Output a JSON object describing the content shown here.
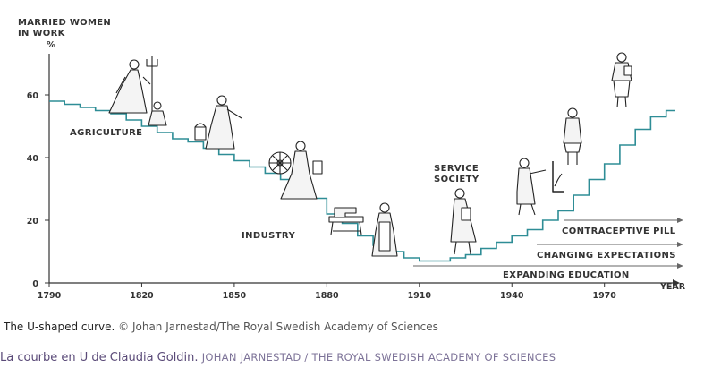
{
  "chart_data": {
    "type": "line",
    "step": true,
    "ylabel_line1": "MARRIED WOMEN",
    "ylabel_line2": "IN WORK",
    "yunit": "%",
    "xlabel": "YEAR",
    "x_ticks": [
      1790,
      1820,
      1850,
      1880,
      1910,
      1940,
      1970
    ],
    "y_ticks": [
      0,
      20,
      40,
      60
    ],
    "xlim": [
      1790,
      1993
    ],
    "ylim": [
      0,
      70
    ],
    "series": [
      {
        "x": [
          1790,
          1795,
          1800,
          1805,
          1810,
          1815,
          1820,
          1825,
          1830,
          1835,
          1840,
          1845,
          1850,
          1855,
          1860,
          1865,
          1870,
          1875,
          1880,
          1885,
          1890,
          1895,
          1900,
          1905,
          1910,
          1915,
          1920,
          1925,
          1930,
          1935,
          1940,
          1945,
          1950,
          1955,
          1960,
          1965,
          1970,
          1975,
          1980,
          1985,
          1990
        ],
        "y": [
          58,
          57,
          56,
          55,
          54,
          52,
          50,
          48,
          46,
          45,
          43,
          41,
          39,
          37,
          35,
          33,
          30,
          27,
          22,
          19,
          15,
          12,
          10,
          8,
          7,
          7,
          8,
          9,
          11,
          13,
          15,
          17,
          20,
          23,
          28,
          33,
          38,
          44,
          49,
          53,
          55
        ]
      }
    ],
    "era_labels": {
      "agriculture": "AGRICULTURE",
      "industry": "INDUSTRY",
      "service_line1": "SERVICE",
      "service_line2": "SOCIETY"
    },
    "annotations": {
      "pill": "CONTRACEPTIVE PILL",
      "expectations": "CHANGING EXPECTATIONS",
      "education": "EXPANDING EDUCATION"
    },
    "line_color": "#2e8d96"
  },
  "caption": {
    "figure_title": "The U-shaped curve.",
    "figure_credit": "© Johan Jarnestad/The Royal Swedish Academy of Sciences",
    "article_title": "La courbe en U de Claudia Goldin.",
    "article_credit": "JOHAN JARNESTAD / THE ROYAL SWEDISH ACADEMY OF SCIENCES"
  },
  "illustrations": [
    "woman-with-pitchfork-icon",
    "woman-carrying-bucket-icon",
    "woman-at-spinning-wheel-icon",
    "sewing-machine-icon",
    "woman-in-apron-icon",
    "woman-with-folder-icon",
    "woman-at-chart-icon",
    "woman-in-suit-icon",
    "woman-on-stairs-icon"
  ]
}
